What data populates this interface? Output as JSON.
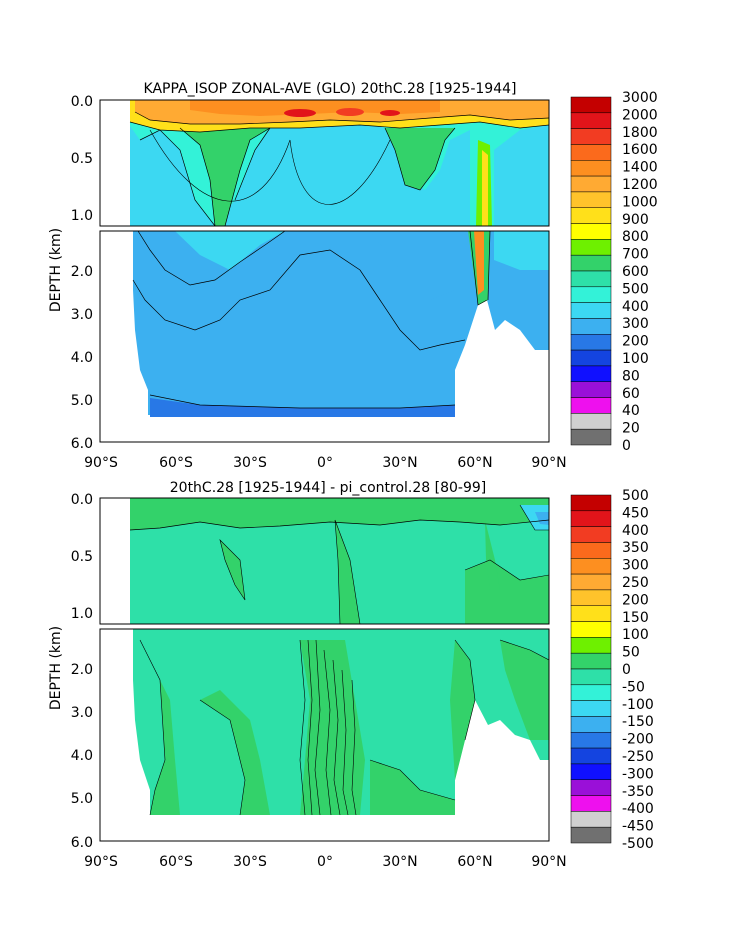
{
  "chart_data": [
    {
      "type": "heatmap",
      "title": "KAPPA_ISOP ZONAL-AVE (GLO) 20thC.28 [1925-1944]",
      "ylabel": "DEPTH (km)",
      "x_ticks": [
        "90°S",
        "60°S",
        "30°S",
        "0°",
        "30°N",
        "60°N",
        "90°N"
      ],
      "upper_y_ticks": [
        "0.0",
        "0.5",
        "1.0"
      ],
      "lower_y_ticks": [
        "2.0",
        "3.0",
        "4.0",
        "5.0",
        "6.0"
      ],
      "colorbar_levels": [
        "3000",
        "2000",
        "1800",
        "1600",
        "1400",
        "1200",
        "1000",
        "900",
        "800",
        "700",
        "600",
        "500",
        "400",
        "300",
        "200",
        "100",
        "80",
        "60",
        "40",
        "20",
        "0"
      ],
      "colorbar_colors": [
        "#c40000",
        "#e2141a",
        "#f23c22",
        "#fb6a1c",
        "#fd8f20",
        "#ffaa33",
        "#ffc32b",
        "#ffe01a",
        "#ffff00",
        "#6ef000",
        "#33d26a",
        "#2ee0a8",
        "#33f2d8",
        "#3cd8f2",
        "#3cb0f0",
        "#2878e6",
        "#1444e0",
        "#1010ff",
        "#9a10d8",
        "#ee10ee",
        "#d0d0d0",
        "#707070"
      ]
    },
    {
      "type": "heatmap",
      "title": "20thC.28 [1925-1944] - pi_control.28 [80-99]",
      "ylabel": "DEPTH (km)",
      "x_ticks": [
        "90°S",
        "60°S",
        "30°S",
        "0°",
        "30°N",
        "60°N",
        "90°N"
      ],
      "upper_y_ticks": [
        "0.0",
        "0.5",
        "1.0"
      ],
      "lower_y_ticks": [
        "2.0",
        "3.0",
        "4.0",
        "5.0",
        "6.0"
      ],
      "colorbar_levels": [
        "500",
        "450",
        "400",
        "350",
        "300",
        "250",
        "200",
        "150",
        "100",
        "50",
        "0",
        "-50",
        "-100",
        "-150",
        "-200",
        "-250",
        "-300",
        "-350",
        "-400",
        "-450",
        "-500"
      ],
      "colorbar_colors": [
        "#c40000",
        "#e2141a",
        "#f23c22",
        "#fb6a1c",
        "#fd8f20",
        "#ffaa33",
        "#ffc32b",
        "#ffe01a",
        "#ffff00",
        "#6ef000",
        "#33d26a",
        "#2ee0a8",
        "#33f2d8",
        "#3cd8f2",
        "#3cb0f0",
        "#2878e6",
        "#1444e0",
        "#1010ff",
        "#9a10d8",
        "#ee10ee",
        "#d0d0d0",
        "#707070"
      ]
    }
  ]
}
